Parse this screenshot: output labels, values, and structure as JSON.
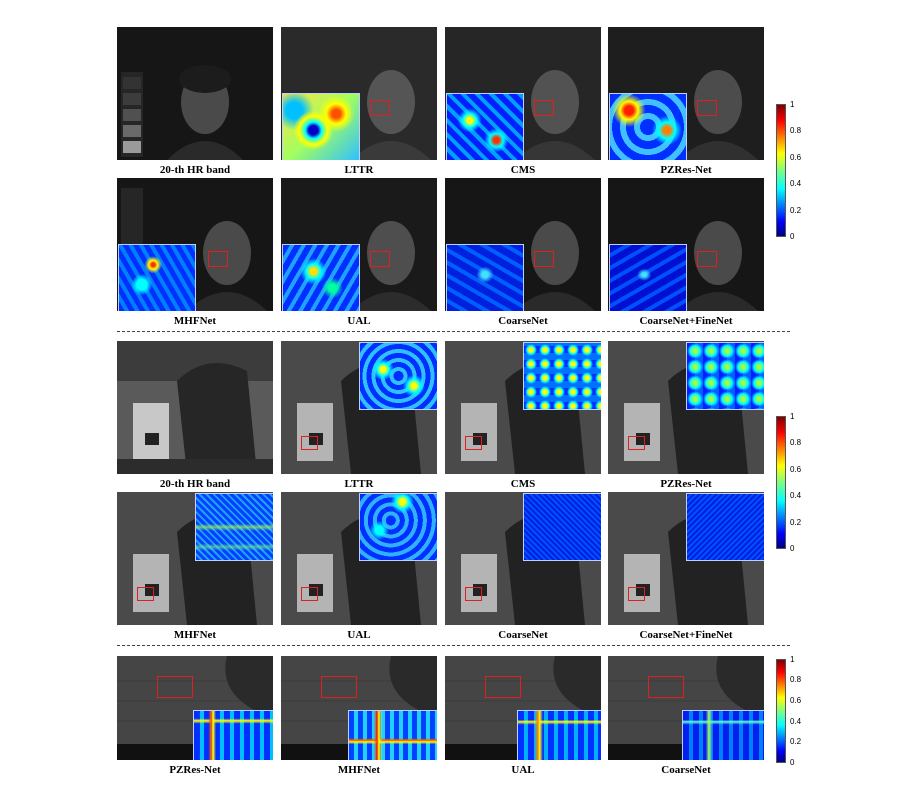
{
  "figure": {
    "group1": {
      "row1": [
        "20-th HR band",
        "LTTR",
        "CMS",
        "PZRes-Net"
      ],
      "row2": [
        "MHFNet",
        "UAL",
        "CoarseNet",
        "CoarseNet+FineNet"
      ]
    },
    "group2": {
      "row1": [
        "20-th HR band",
        "LTTR",
        "CMS",
        "PZRes-Net"
      ],
      "row2": [
        "MHFNet",
        "UAL",
        "CoarseNet",
        "CoarseNet+FineNet"
      ]
    },
    "group3": {
      "row1": [
        "PZRes-Net",
        "MHFNet",
        "UAL",
        "CoarseNet"
      ]
    },
    "colorbar_ticks": [
      "1",
      "0.8",
      "0.6",
      "0.4",
      "0.2",
      "0"
    ],
    "colormap": [
      "#00007f",
      "#0000ff",
      "#00ffff",
      "#ffff00",
      "#ff0000",
      "#7f0000"
    ],
    "roi_color": "#e02020"
  }
}
